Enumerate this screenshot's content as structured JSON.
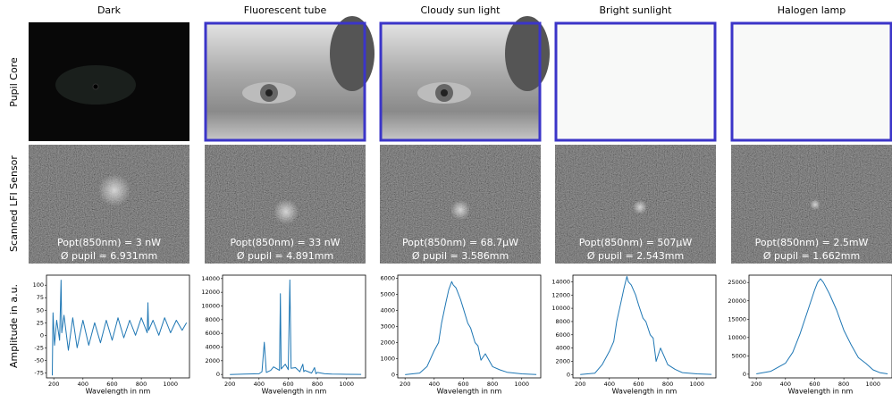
{
  "row_labels": [
    "Pupil Core",
    "Scanned LFI Sensor"
  ],
  "chart_data": [
    {
      "type": "line",
      "title": "Dark",
      "annotations": [
        "Popt(850nm) = 3 nW",
        "Ø pupil = 6.931mm"
      ],
      "ylabel": "Amplitude in a.u.",
      "xlabel": "Wavelength in nm",
      "color": "#1f77b4",
      "x": [
        190,
        195,
        205,
        220,
        240,
        250,
        255,
        270,
        300,
        330,
        360,
        400,
        440,
        480,
        520,
        560,
        600,
        640,
        680,
        720,
        760,
        800,
        840,
        845,
        850,
        880,
        920,
        960,
        1000,
        1040,
        1080,
        1110
      ],
      "values": [
        -80,
        45,
        -20,
        30,
        -10,
        110,
        5,
        40,
        -30,
        35,
        -25,
        30,
        -20,
        25,
        -15,
        30,
        -10,
        35,
        -5,
        30,
        0,
        35,
        5,
        65,
        10,
        30,
        0,
        35,
        5,
        30,
        10,
        25
      ],
      "xlim": [
        150,
        1130
      ],
      "xticks": [
        200,
        400,
        600,
        800,
        1000
      ],
      "ylim": [
        -85,
        120
      ],
      "yticks": [
        -75,
        -50,
        -25,
        0,
        25,
        50,
        75,
        100
      ]
    },
    {
      "type": "line",
      "title": "Fluorescent tube",
      "annotations": [
        "Popt(850nm) = 33 nW",
        "Ø pupil = 4.891mm"
      ],
      "xlabel": "Wavelength in nm",
      "color": "#1f77b4",
      "x": [
        200,
        300,
        400,
        420,
        436,
        450,
        480,
        500,
        540,
        546,
        552,
        580,
        600,
        611,
        620,
        650,
        680,
        700,
        707,
        715,
        760,
        780,
        790,
        800,
        850,
        900,
        1000,
        1100
      ],
      "values": [
        0,
        50,
        100,
        400,
        4700,
        300,
        600,
        1100,
        600,
        11800,
        800,
        1500,
        700,
        13800,
        900,
        1000,
        400,
        1500,
        400,
        600,
        200,
        1000,
        100,
        300,
        100,
        50,
        20,
        10
      ],
      "xlim": [
        150,
        1130
      ],
      "xticks": [
        200,
        400,
        600,
        800,
        1000
      ],
      "ylim": [
        -500,
        14500
      ],
      "yticks": [
        0,
        2000,
        4000,
        6000,
        8000,
        10000,
        12000,
        14000
      ]
    },
    {
      "type": "line",
      "title": "Cloudy sun light",
      "annotations": [
        "Popt(850nm) = 68.7μW",
        "Ø pupil = 3.586mm"
      ],
      "xlabel": "Wavelength in nm",
      "color": "#1f77b4",
      "x": [
        200,
        300,
        350,
        400,
        430,
        450,
        480,
        500,
        520,
        530,
        550,
        580,
        600,
        630,
        650,
        680,
        700,
        720,
        750,
        800,
        850,
        900,
        1000,
        1100
      ],
      "values": [
        0,
        100,
        500,
        1500,
        2000,
        3200,
        4500,
        5300,
        5800,
        5600,
        5400,
        4700,
        4100,
        3200,
        2900,
        2000,
        1800,
        900,
        1300,
        500,
        300,
        150,
        50,
        10
      ],
      "xlim": [
        150,
        1130
      ],
      "xticks": [
        200,
        400,
        600,
        800,
        1000
      ],
      "ylim": [
        -200,
        6200
      ],
      "yticks": [
        0,
        1000,
        2000,
        3000,
        4000,
        5000,
        6000
      ]
    },
    {
      "type": "line",
      "title": "Bright sunlight",
      "annotations": [
        "Popt(850nm) = 507μW",
        "Ø pupil = 2.543mm"
      ],
      "xlabel": "Wavelength in nm",
      "color": "#1f77b4",
      "x": [
        200,
        300,
        350,
        400,
        430,
        450,
        480,
        500,
        520,
        530,
        550,
        580,
        600,
        630,
        650,
        680,
        700,
        720,
        750,
        800,
        850,
        900,
        1000,
        1100
      ],
      "values": [
        0,
        200,
        1500,
        3500,
        5000,
        8000,
        11000,
        13000,
        14800,
        14000,
        13500,
        12000,
        10500,
        8500,
        8000,
        6000,
        5500,
        2000,
        4000,
        1500,
        800,
        300,
        100,
        20
      ],
      "xlim": [
        150,
        1130
      ],
      "xticks": [
        200,
        400,
        600,
        800,
        1000
      ],
      "ylim": [
        -500,
        15000
      ],
      "yticks": [
        0,
        2000,
        4000,
        6000,
        8000,
        10000,
        12000,
        14000
      ]
    },
    {
      "type": "line",
      "title": "Halogen lamp",
      "annotations": [
        "Popt(850nm) = 2.5mW",
        "Ø pupil = 1.662mm"
      ],
      "xlabel": "Wavelength in nm",
      "color": "#1f77b4",
      "x": [
        200,
        300,
        400,
        450,
        500,
        550,
        600,
        620,
        640,
        660,
        700,
        750,
        800,
        850,
        900,
        950,
        1000,
        1050,
        1100
      ],
      "values": [
        100,
        800,
        3000,
        6000,
        11000,
        17000,
        23000,
        25000,
        26000,
        25000,
        22000,
        17500,
        12000,
        8000,
        4500,
        3000,
        1200,
        400,
        100
      ],
      "xlim": [
        150,
        1130
      ],
      "xticks": [
        200,
        400,
        600,
        800,
        1000
      ],
      "ylim": [
        -1000,
        27000
      ],
      "yticks": [
        0,
        5000,
        10000,
        15000,
        20000,
        25000
      ]
    }
  ]
}
